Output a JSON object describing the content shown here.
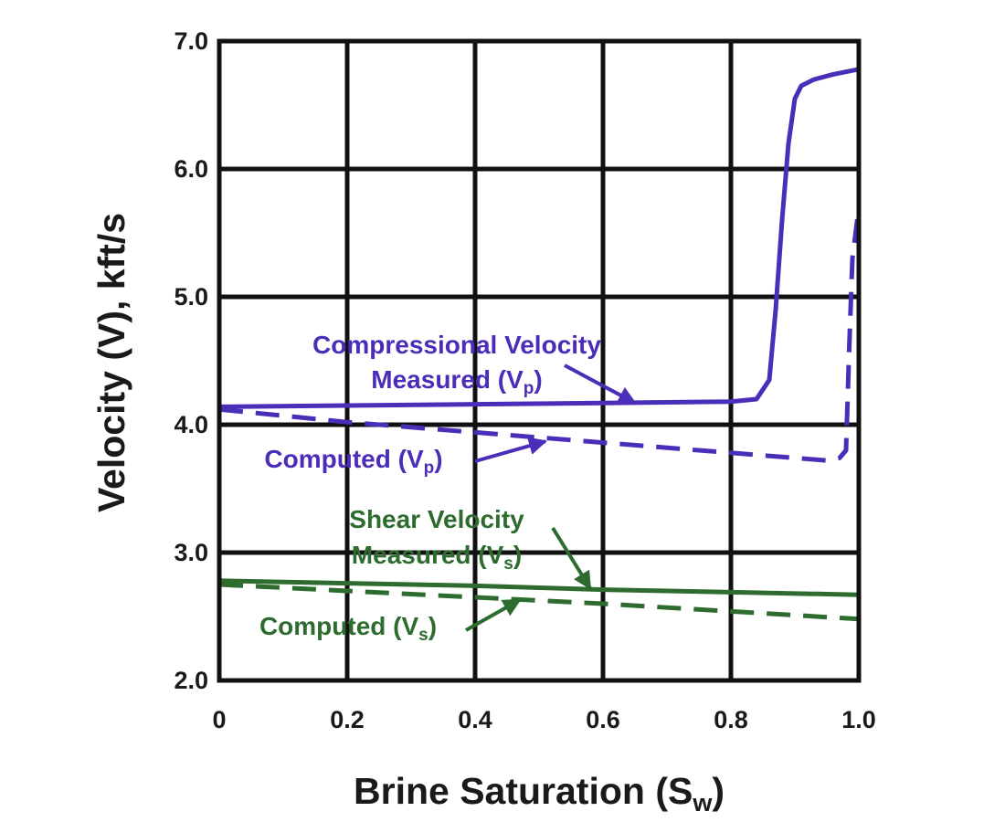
{
  "chart_data": {
    "type": "line",
    "xlabel": "Brine Saturation (S",
    "xlabel_sub": "w",
    "xlabel_close": ")",
    "ylabel": "Velocity (V), kft/s",
    "xlim": [
      0,
      1.0
    ],
    "ylim": [
      2.0,
      7.0
    ],
    "xticks": [
      "0",
      "0.2",
      "0.4",
      "0.6",
      "0.8",
      "1.0"
    ],
    "yticks": [
      "2.0",
      "3.0",
      "4.0",
      "5.0",
      "6.0",
      "7.0"
    ],
    "grid": true,
    "colors": {
      "compressional": "#4a2db8",
      "shear": "#2e6b2e",
      "axis": "#111111"
    },
    "series": [
      {
        "id": "vp_measured",
        "style": "solid",
        "color": "#4a2db8",
        "x": [
          0,
          0.2,
          0.4,
          0.6,
          0.8,
          0.84,
          0.86,
          0.87,
          0.88,
          0.89,
          0.9,
          0.91,
          0.93,
          0.96,
          1.0
        ],
        "y": [
          4.14,
          4.15,
          4.16,
          4.17,
          4.18,
          4.2,
          4.35,
          4.9,
          5.6,
          6.2,
          6.55,
          6.65,
          6.7,
          6.74,
          6.78
        ]
      },
      {
        "id": "vp_computed",
        "style": "dashed",
        "color": "#4a2db8",
        "x": [
          0,
          0.2,
          0.4,
          0.6,
          0.8,
          0.9,
          0.95,
          0.97,
          0.98,
          0.985,
          0.99,
          1.0
        ],
        "y": [
          4.12,
          4.02,
          3.94,
          3.86,
          3.78,
          3.74,
          3.72,
          3.74,
          3.8,
          4.6,
          5.3,
          5.7
        ]
      },
      {
        "id": "vs_measured",
        "style": "solid",
        "color": "#2e6b2e",
        "x": [
          0,
          0.2,
          0.4,
          0.6,
          0.8,
          1.0
        ],
        "y": [
          2.78,
          2.76,
          2.74,
          2.71,
          2.69,
          2.67
        ]
      },
      {
        "id": "vs_computed",
        "style": "dashed",
        "color": "#2e6b2e",
        "x": [
          0,
          0.2,
          0.4,
          0.6,
          0.8,
          1.0
        ],
        "y": [
          2.75,
          2.7,
          2.65,
          2.6,
          2.54,
          2.48
        ]
      }
    ],
    "annotations": [
      {
        "id": "vp-measured",
        "color": "#4a2db8",
        "line1": "Compressional Velocity",
        "line2": "Measured (V",
        "sub": "p",
        "close": ")",
        "arrow_to": [
          0.65,
          4.17
        ]
      },
      {
        "id": "vp-computed",
        "color": "#4a2db8",
        "line2": "Computed (V",
        "sub": "p",
        "close": ")",
        "arrow_to": [
          0.51,
          3.87
        ]
      },
      {
        "id": "vs-measured",
        "color": "#2e6b2e",
        "line1": "Shear Velocity",
        "line2": "Measured (V",
        "sub": "s",
        "close": ")",
        "arrow_to": [
          0.58,
          2.72
        ]
      },
      {
        "id": "vs-computed",
        "color": "#2e6b2e",
        "line2": "Computed (V",
        "sub": "s",
        "close": ")",
        "arrow_to": [
          0.47,
          2.63
        ]
      }
    ]
  }
}
